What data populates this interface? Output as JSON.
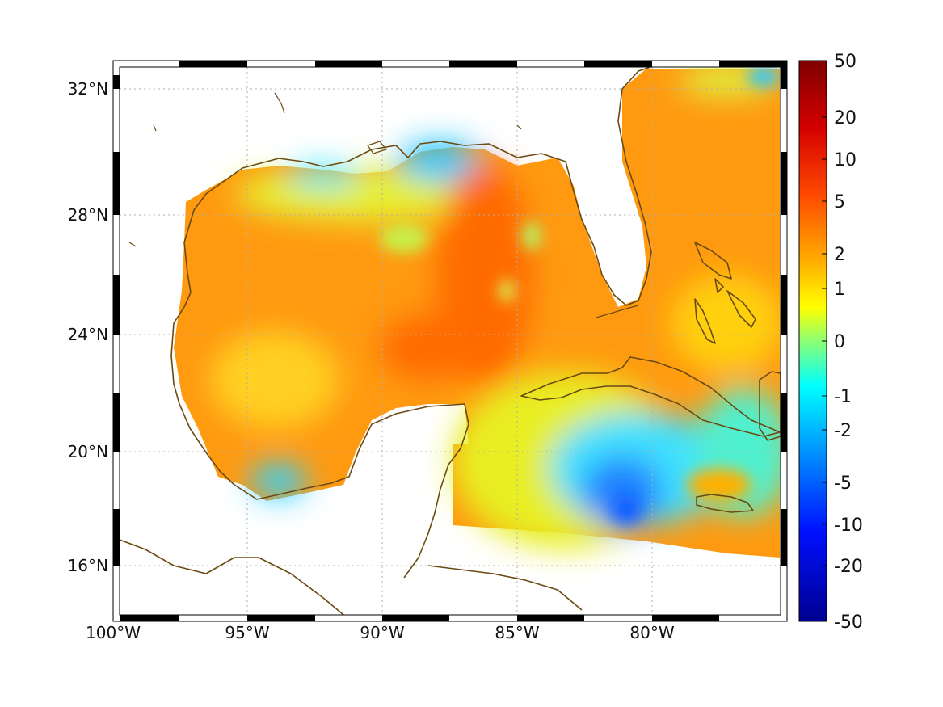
{
  "map": {
    "lon_ticks": [
      "100°W",
      "95°W",
      "90°W",
      "85°W",
      "80°W"
    ],
    "lat_ticks": [
      "32°N",
      "28°N",
      "24°N",
      "20°N",
      "16°N"
    ],
    "lon_range": [
      -100,
      -75
    ],
    "lat_range": [
      14.5,
      33
    ],
    "coastline_color": "#6b4a12",
    "grid": true
  },
  "colorbar": {
    "colormap": "jet",
    "tick_labels": [
      "50",
      "20",
      "10",
      "5",
      "2",
      "1",
      "0",
      "-1",
      "-2",
      "-5",
      "-10",
      "-20",
      "-50"
    ],
    "colors": [
      "#7f0000",
      "#ff0000",
      "#ff7a00",
      "#ffff00",
      "#8cff73",
      "#00ffff",
      "#0080ff",
      "#0000ff",
      "#00008f"
    ]
  }
}
